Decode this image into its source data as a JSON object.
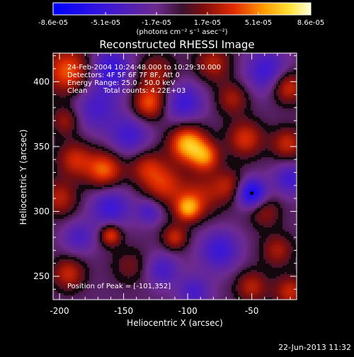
{
  "chart_data": {
    "type": "heatmap",
    "title": "Reconstructed RHESSI Image",
    "xlabel": "Heliocentric X (arcsec)",
    "ylabel": "Heliocentric Y (arcsec)",
    "xlim": [
      -205,
      -15
    ],
    "ylim": [
      232,
      422
    ],
    "x_ticks": [
      -200,
      -150,
      -100,
      -50
    ],
    "y_ticks": [
      250,
      300,
      350,
      400
    ],
    "colorbar": {
      "tick_labels": [
        "-8.6e-05",
        "-5.1e-05",
        "-1.7e-05",
        "1.7e-05",
        "5.1e-05",
        "8.6e-05"
      ],
      "tick_values": [
        -8.6e-05,
        -5.1e-05,
        -1.7e-05,
        1.7e-05,
        5.1e-05,
        8.6e-05
      ],
      "range": [
        -8.6e-05,
        8.6e-05
      ],
      "label": "(photons cm⁻² s⁻¹ asec⁻²)"
    },
    "annotations": {
      "time": "24-Feb-2004 10:24:48.000 to 10:29:30.000",
      "detectors": "Detectors: 4F 5F 6F 7F 8F, Att 0",
      "energy": "Energy Range: 25.0 - 50.0 keV",
      "clean": "Clean",
      "counts": "Total counts: 4.22E+03",
      "peak": "Position of Peak = [-101,352]"
    },
    "blobs": [
      {
        "x": -193,
        "y": 408,
        "sigma": 13,
        "amp": 0.75
      },
      {
        "x": -160,
        "y": 410,
        "sigma": 12,
        "amp": -0.6
      },
      {
        "x": -125,
        "y": 406,
        "sigma": 11,
        "amp": 0.45
      },
      {
        "x": -80,
        "y": 414,
        "sigma": 10,
        "amp": 0.5
      },
      {
        "x": -38,
        "y": 408,
        "sigma": 12,
        "amp": -0.55
      },
      {
        "x": -22,
        "y": 396,
        "sigma": 9,
        "amp": 0.65
      },
      {
        "x": -130,
        "y": 383,
        "sigma": 9,
        "amp": 0.7
      },
      {
        "x": -65,
        "y": 387,
        "sigma": 9,
        "amp": 0.45
      },
      {
        "x": -103,
        "y": 384,
        "sigma": 11,
        "amp": -0.55
      },
      {
        "x": -172,
        "y": 380,
        "sigma": 13,
        "amp": -0.45
      },
      {
        "x": -195,
        "y": 370,
        "sigma": 8,
        "amp": 0.45
      },
      {
        "x": -145,
        "y": 358,
        "sigma": 11,
        "amp": -0.5
      },
      {
        "x": -100,
        "y": 352,
        "sigma": 10,
        "amp": 1.0
      },
      {
        "x": -86,
        "y": 342,
        "sigma": 8,
        "amp": 0.7
      },
      {
        "x": -55,
        "y": 356,
        "sigma": 10,
        "amp": 0.6
      },
      {
        "x": -22,
        "y": 352,
        "sigma": 9,
        "amp": 0.55
      },
      {
        "x": -188,
        "y": 340,
        "sigma": 10,
        "amp": 0.55
      },
      {
        "x": -165,
        "y": 332,
        "sigma": 10,
        "amp": 0.75
      },
      {
        "x": -132,
        "y": 334,
        "sigma": 10,
        "amp": 0.5
      },
      {
        "x": -118,
        "y": 320,
        "sigma": 11,
        "amp": 0.55
      },
      {
        "x": -90,
        "y": 312,
        "sigma": 12,
        "amp": 0.45
      },
      {
        "x": -50,
        "y": 314,
        "sigma": 8,
        "amp": -0.9
      },
      {
        "x": -68,
        "y": 320,
        "sigma": 9,
        "amp": 0.45
      },
      {
        "x": -20,
        "y": 325,
        "sigma": 9,
        "amp": -0.5
      },
      {
        "x": -200,
        "y": 310,
        "sigma": 10,
        "amp": 0.5
      },
      {
        "x": -160,
        "y": 303,
        "sigma": 11,
        "amp": -0.55
      },
      {
        "x": -100,
        "y": 302,
        "sigma": 7,
        "amp": 0.75
      },
      {
        "x": -130,
        "y": 300,
        "sigma": 7,
        "amp": -0.45
      },
      {
        "x": -40,
        "y": 300,
        "sigma": 9,
        "amp": 0.4
      },
      {
        "x": -160,
        "y": 282,
        "sigma": 6,
        "amp": 0.7
      },
      {
        "x": -110,
        "y": 280,
        "sigma": 7,
        "amp": 0.55
      },
      {
        "x": -185,
        "y": 280,
        "sigma": 9,
        "amp": -0.4
      },
      {
        "x": -75,
        "y": 270,
        "sigma": 11,
        "amp": -0.55
      },
      {
        "x": -30,
        "y": 270,
        "sigma": 9,
        "amp": 0.45
      },
      {
        "x": -193,
        "y": 252,
        "sigma": 9,
        "amp": 0.55
      },
      {
        "x": -145,
        "y": 258,
        "sigma": 10,
        "amp": 0.3
      },
      {
        "x": -120,
        "y": 255,
        "sigma": 9,
        "amp": -0.45
      },
      {
        "x": -50,
        "y": 242,
        "sigma": 9,
        "amp": 0.5
      },
      {
        "x": -20,
        "y": 238,
        "sigma": 9,
        "amp": 0.55
      },
      {
        "x": -95,
        "y": 238,
        "sigma": 9,
        "amp": -0.45
      }
    ],
    "background_level": -0.15,
    "marker": {
      "x": -50,
      "y": 314
    }
  },
  "footer": {
    "date": "22-Jun-2013 11:32"
  }
}
